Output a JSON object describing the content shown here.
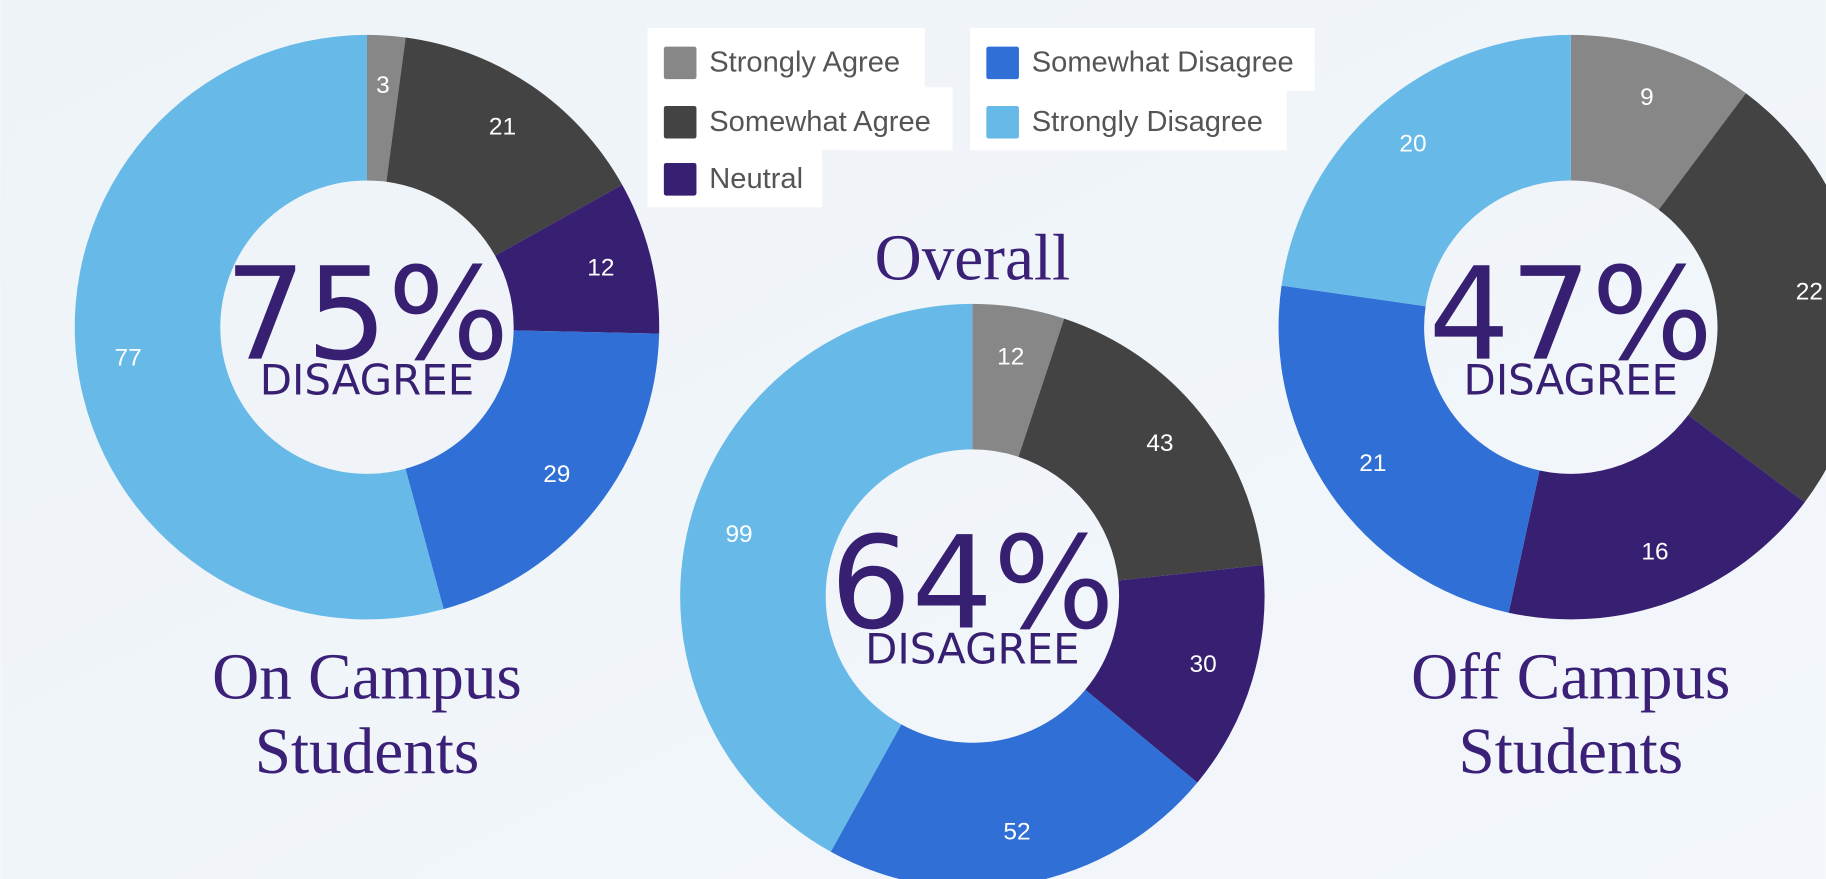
{
  "chart_data": [
    {
      "type": "pie",
      "title": [
        "On Campus",
        "Students"
      ],
      "center_label": "75%",
      "center_sublabel": "DISAGREE",
      "categories": [
        "Strongly Agree",
        "Somewhat Agree",
        "Neutral",
        "Somewhat Disagree",
        "Strongly Disagree"
      ],
      "values": [
        3,
        21,
        12,
        29,
        77
      ],
      "colors": [
        "#878787",
        "#434343",
        "#371f72",
        "#2f6fd6",
        "#67b9e8"
      ]
    },
    {
      "type": "pie",
      "title": [
        "Overall"
      ],
      "center_label": "64%",
      "center_sublabel": "DISAGREE",
      "categories": [
        "Strongly Agree",
        "Somewhat Agree",
        "Neutral",
        "Somewhat Disagree",
        "Strongly Disagree"
      ],
      "values": [
        12,
        43,
        30,
        52,
        99
      ],
      "colors": [
        "#878787",
        "#434343",
        "#371f72",
        "#2f6fd6",
        "#67b9e8"
      ]
    },
    {
      "type": "pie",
      "title": [
        "Off Campus",
        "Students"
      ],
      "center_label": "47%",
      "center_sublabel": "DISAGREE",
      "categories": [
        "Strongly Agree",
        "Somewhat Agree",
        "Neutral",
        "Somewhat Disagree",
        "Strongly Disagree"
      ],
      "values": [
        9,
        22,
        16,
        21,
        20
      ],
      "colors": [
        "#878787",
        "#434343",
        "#371f72",
        "#2f6fd6",
        "#67b9e8"
      ]
    }
  ]
}
